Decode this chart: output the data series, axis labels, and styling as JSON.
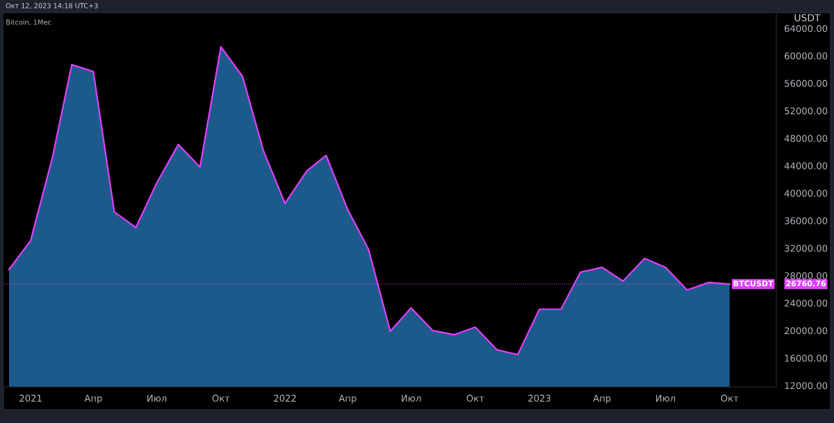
{
  "chart_data": {
    "type": "area",
    "title": "Bitcoin, 1Мес",
    "ylabel": "USDT",
    "annotations": [
      "Окт 12, 2023 14:18 UTC+3",
      "26760.76"
    ],
    "x": [
      "2020-12",
      "2021-01",
      "2021-02",
      "2021-03",
      "2021-04",
      "2021-05",
      "2021-06",
      "2021-07",
      "2021-08",
      "2021-09",
      "2021-10",
      "2021-11",
      "2021-12",
      "2022-01",
      "2022-02",
      "2022-03",
      "2022-04",
      "2022-05",
      "2022-06",
      "2022-07",
      "2022-08",
      "2022-09",
      "2022-10",
      "2022-11",
      "2022-12",
      "2023-01",
      "2023-02",
      "2023-03",
      "2023-04",
      "2023-05",
      "2023-06",
      "2023-07",
      "2023-08",
      "2023-09",
      "2023-10"
    ],
    "series": [
      {
        "color": "#1d5a8c",
        "values": [
          28900,
          33100,
          45100,
          58700,
          57700,
          37300,
          35000,
          41500,
          47100,
          43800,
          61300,
          57000,
          46200,
          38500,
          43200,
          45500,
          37600,
          31800,
          19900,
          23300,
          20000,
          19400,
          20500,
          17200,
          16500,
          23100,
          23100,
          28500,
          29200,
          27200,
          30500,
          29200,
          25900,
          27000,
          26760.76
        ]
      },
      {
        "type": "line",
        "color": "#e040fb",
        "values": [
          28900,
          33100,
          45100,
          58700,
          57700,
          37300,
          35000,
          41500,
          47100,
          43800,
          61300,
          57000,
          46200,
          38500,
          43200,
          45500,
          37600,
          31800,
          19900,
          23300,
          20000,
          19400,
          20500,
          17200,
          16500,
          23100,
          23100,
          28500,
          29200,
          27200,
          30500,
          29200,
          25900,
          27000,
          26760.76
        ]
      }
    ],
    "xlim": [
      "2020-11-23",
      "2023-12-07"
    ],
    "xticks": [
      {
        "value": "2021-01",
        "label": "2021"
      },
      {
        "value": "2021-04",
        "label": "Апр"
      },
      {
        "value": "2021-07",
        "label": "Июл"
      },
      {
        "value": "2021-10",
        "label": "Окт"
      },
      {
        "value": "2022-01",
        "label": "2022"
      },
      {
        "value": "2022-04",
        "label": "Апр"
      },
      {
        "value": "2022-07",
        "label": "Июл"
      },
      {
        "value": "2022-10",
        "label": "Окт"
      },
      {
        "value": "2023-01",
        "label": "2023"
      },
      {
        "value": "2023-04",
        "label": "Апр"
      },
      {
        "value": "2023-07",
        "label": "Июл"
      },
      {
        "value": "2023-10",
        "label": "Окт"
      }
    ],
    "ylim": [
      11800,
      66100
    ],
    "yticks": [
      {
        "value": 12000,
        "label": "12000.00"
      },
      {
        "value": 16000,
        "label": "16000.00"
      },
      {
        "value": 20000,
        "label": "20000.00"
      },
      {
        "value": 24000,
        "label": "24000.00"
      },
      {
        "value": 28000,
        "label": "28000.00"
      },
      {
        "value": 32000,
        "label": "32000.00"
      },
      {
        "value": 36000,
        "label": "36000.00"
      },
      {
        "value": 40000,
        "label": "40000.00"
      },
      {
        "value": 44000,
        "label": "44000.00"
      },
      {
        "value": 48000,
        "label": "48000.00"
      },
      {
        "value": 52000,
        "label": "52000.00"
      },
      {
        "value": 56000,
        "label": "56000.00"
      },
      {
        "value": 60000,
        "label": "60000.00"
      },
      {
        "value": 64000,
        "label": "64000.00"
      }
    ],
    "ref_lines": [
      {
        "axis": "y",
        "value": 26760.76,
        "label": "BTCUSDT",
        "color": "#e040fb",
        "line_style": "dotted"
      }
    ],
    "grid": false,
    "legend": false
  }
}
